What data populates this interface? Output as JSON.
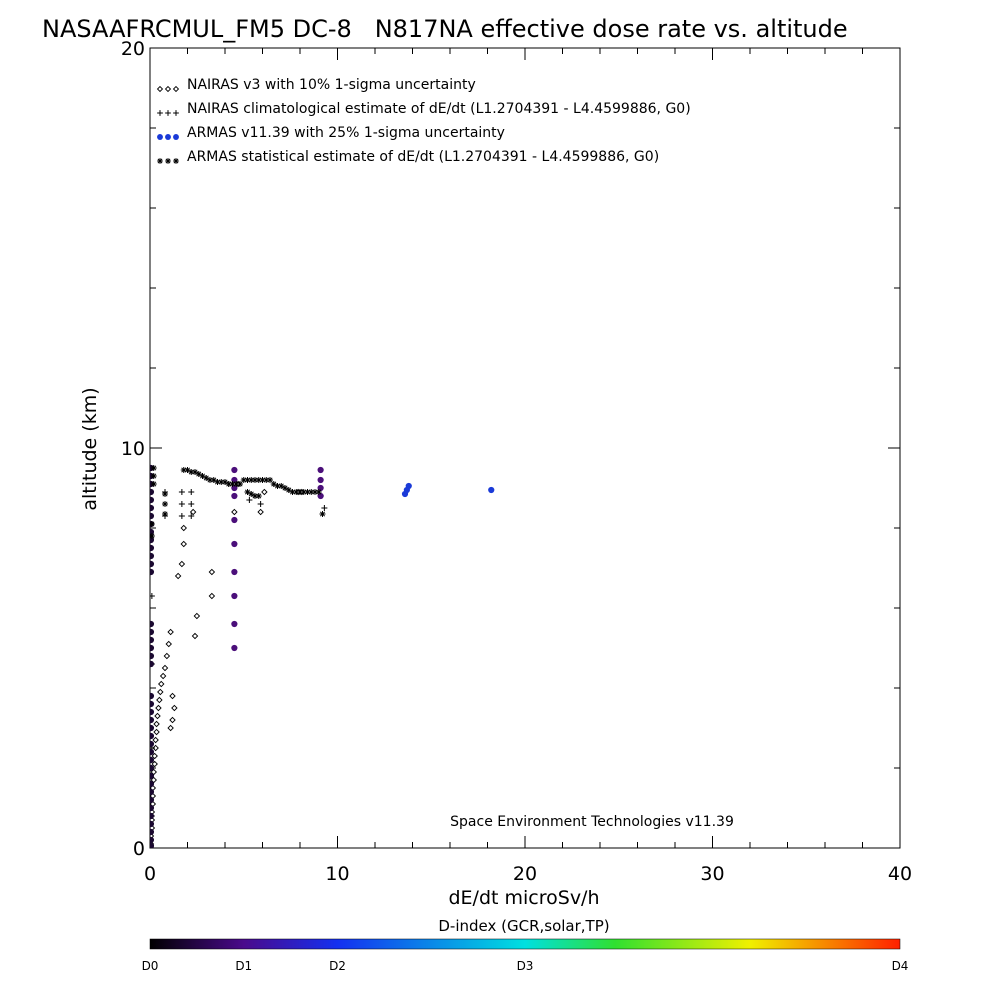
{
  "chart_data": {
    "type": "scatter",
    "title": "NASAAFRCMUL_FM5 DC-8   N817NA effective dose rate vs. altitude",
    "xlabel": "dE/dt microSv/h",
    "ylabel": "altitude (km)",
    "xlim": [
      0,
      40
    ],
    "ylim": [
      0,
      20
    ],
    "x_ticks": [
      "0",
      "10",
      "20",
      "30",
      "40"
    ],
    "y_ticks": [
      "0",
      "10",
      "20"
    ],
    "grid": false,
    "legend_position": "top-left",
    "annotation": "Space Environment Technologies v11.39",
    "series": [
      {
        "name": "NAIRAS v3 with 10% 1-sigma uncertainty",
        "marker": "diamond",
        "color": "#000000",
        "points": [
          [
            0.05,
            0.1
          ],
          [
            0.05,
            0.3
          ],
          [
            0.1,
            0.5
          ],
          [
            0.1,
            0.7
          ],
          [
            0.1,
            0.9
          ],
          [
            0.15,
            1.1
          ],
          [
            0.15,
            1.3
          ],
          [
            0.15,
            1.5
          ],
          [
            0.2,
            1.7
          ],
          [
            0.2,
            1.9
          ],
          [
            0.25,
            2.1
          ],
          [
            0.25,
            2.3
          ],
          [
            0.3,
            2.5
          ],
          [
            0.3,
            2.7
          ],
          [
            0.35,
            2.9
          ],
          [
            0.35,
            3.1
          ],
          [
            0.4,
            3.3
          ],
          [
            0.45,
            3.5
          ],
          [
            0.5,
            3.7
          ],
          [
            0.55,
            3.9
          ],
          [
            0.6,
            4.1
          ],
          [
            0.7,
            4.3
          ],
          [
            0.8,
            4.5
          ],
          [
            0.9,
            4.8
          ],
          [
            1.0,
            5.1
          ],
          [
            1.1,
            5.4
          ],
          [
            1.2,
            3.8
          ],
          [
            1.3,
            3.5
          ],
          [
            1.2,
            3.2
          ],
          [
            1.1,
            3.0
          ],
          [
            2.4,
            5.3
          ],
          [
            2.5,
            5.8
          ],
          [
            3.3,
            6.3
          ],
          [
            3.3,
            6.9
          ],
          [
            1.5,
            6.8
          ],
          [
            1.7,
            7.1
          ],
          [
            1.8,
            7.6
          ],
          [
            1.8,
            8.0
          ],
          [
            2.3,
            8.4
          ],
          [
            4.5,
            8.4
          ],
          [
            5.9,
            8.4
          ],
          [
            4.7,
            9.1
          ],
          [
            6.1,
            8.9
          ],
          [
            7.9,
            8.9
          ],
          [
            8.1,
            8.9
          ]
        ]
      },
      {
        "name": "NAIRAS climatological estimate of dE/dt (L1.2704391 - L4.4599886, G0)",
        "marker": "plus",
        "color": "#000000",
        "points": [
          [
            0.1,
            0.8
          ],
          [
            0.1,
            2.5
          ],
          [
            0.1,
            4.6
          ],
          [
            0.1,
            6.3
          ],
          [
            0.8,
            8.3
          ],
          [
            0.8,
            8.6
          ],
          [
            0.8,
            8.9
          ],
          [
            1.7,
            8.3
          ],
          [
            1.7,
            8.6
          ],
          [
            1.7,
            8.9
          ],
          [
            2.2,
            8.3
          ],
          [
            2.2,
            8.6
          ],
          [
            2.2,
            8.9
          ],
          [
            4.2,
            9.1
          ],
          [
            5.3,
            8.7
          ],
          [
            5.9,
            8.6
          ],
          [
            9.1,
            8.8
          ],
          [
            9.3,
            8.5
          ]
        ]
      },
      {
        "name": "ARMAS v11.39 with 25% 1-sigma uncertainty",
        "marker": "filled-circle",
        "color": "#1133cc",
        "points": [
          [
            0.05,
            0.05
          ],
          [
            0.05,
            0.2
          ],
          [
            0.05,
            0.4
          ],
          [
            0.05,
            0.6
          ],
          [
            0.05,
            0.8
          ],
          [
            0.05,
            1.0
          ],
          [
            0.05,
            1.2
          ],
          [
            0.05,
            1.4
          ],
          [
            0.05,
            1.6
          ],
          [
            0.05,
            1.8
          ],
          [
            0.05,
            2.0
          ],
          [
            0.05,
            2.2
          ],
          [
            0.05,
            2.4
          ],
          [
            0.05,
            2.6
          ],
          [
            0.05,
            2.8
          ],
          [
            0.05,
            3.0
          ],
          [
            0.05,
            3.2
          ],
          [
            0.05,
            3.4
          ],
          [
            0.05,
            3.6
          ],
          [
            0.05,
            3.8
          ],
          [
            0.05,
            4.6
          ],
          [
            0.05,
            4.8
          ],
          [
            0.05,
            5.0
          ],
          [
            0.05,
            5.2
          ],
          [
            0.05,
            5.4
          ],
          [
            0.05,
            5.6
          ],
          [
            0.05,
            6.9
          ],
          [
            0.05,
            7.1
          ],
          [
            0.05,
            7.3
          ],
          [
            0.05,
            7.5
          ],
          [
            0.05,
            7.7
          ],
          [
            0.05,
            7.9
          ],
          [
            0.05,
            8.1
          ],
          [
            0.05,
            8.3
          ],
          [
            0.05,
            8.5
          ],
          [
            0.05,
            8.7
          ],
          [
            0.05,
            8.9
          ],
          [
            0.05,
            9.1
          ],
          [
            0.05,
            9.3
          ],
          [
            0.05,
            9.5
          ],
          [
            4.5,
            5.0
          ],
          [
            4.5,
            5.6
          ],
          [
            4.5,
            6.3
          ],
          [
            4.5,
            6.9
          ],
          [
            4.5,
            7.6
          ],
          [
            4.5,
            8.2
          ],
          [
            4.5,
            8.8
          ],
          [
            4.5,
            9.0
          ],
          [
            4.5,
            9.2
          ],
          [
            4.5,
            9.45
          ],
          [
            9.1,
            8.8
          ],
          [
            9.1,
            9.0
          ],
          [
            9.1,
            9.2
          ],
          [
            9.1,
            9.45
          ],
          [
            13.6,
            8.85
          ],
          [
            13.7,
            8.95
          ],
          [
            13.8,
            9.05
          ],
          [
            18.2,
            8.95
          ]
        ]
      },
      {
        "name": "ARMAS statistical estimate of dE/dt (L1.2704391 - L4.4599886, G0)",
        "marker": "asterisk",
        "color": "#000000",
        "points": [
          [
            0.8,
            8.35
          ],
          [
            0.8,
            8.6
          ],
          [
            0.8,
            8.85
          ],
          [
            0.2,
            9.1
          ],
          [
            0.2,
            9.3
          ],
          [
            0.2,
            9.5
          ],
          [
            1.8,
            9.45
          ],
          [
            2.0,
            9.45
          ],
          [
            2.2,
            9.4
          ],
          [
            2.4,
            9.4
          ],
          [
            2.6,
            9.35
          ],
          [
            2.8,
            9.3
          ],
          [
            3.0,
            9.25
          ],
          [
            3.2,
            9.2
          ],
          [
            3.4,
            9.2
          ],
          [
            3.6,
            9.15
          ],
          [
            3.8,
            9.15
          ],
          [
            4.0,
            9.15
          ],
          [
            4.2,
            9.1
          ],
          [
            4.4,
            9.1
          ],
          [
            4.6,
            9.1
          ],
          [
            4.8,
            9.1
          ],
          [
            5.0,
            9.2
          ],
          [
            5.2,
            9.2
          ],
          [
            5.4,
            9.2
          ],
          [
            5.6,
            9.2
          ],
          [
            5.8,
            9.2
          ],
          [
            6.0,
            9.2
          ],
          [
            6.2,
            9.2
          ],
          [
            6.4,
            9.2
          ],
          [
            6.6,
            9.1
          ],
          [
            6.8,
            9.05
          ],
          [
            7.0,
            9.05
          ],
          [
            7.2,
            9.0
          ],
          [
            7.4,
            8.95
          ],
          [
            7.6,
            8.9
          ],
          [
            7.8,
            8.9
          ],
          [
            8.0,
            8.9
          ],
          [
            8.2,
            8.9
          ],
          [
            8.4,
            8.9
          ],
          [
            8.6,
            8.9
          ],
          [
            8.8,
            8.9
          ],
          [
            9.0,
            8.9
          ],
          [
            5.2,
            8.9
          ],
          [
            5.4,
            8.85
          ],
          [
            5.6,
            8.8
          ],
          [
            5.8,
            8.8
          ],
          [
            9.2,
            8.35
          ],
          [
            0.1,
            8.1
          ],
          [
            0.1,
            7.8
          ]
        ]
      }
    ],
    "colorbar": {
      "title": "D-index (GCR,solar,TP)",
      "labels": [
        "D0",
        "D1",
        "D2",
        "D3",
        "D4"
      ],
      "label_positions": [
        0,
        0.125,
        0.25,
        0.5,
        1.0
      ],
      "colors": [
        "#000000",
        "#4a0a8c",
        "#1430f0",
        "#00e0e0",
        "#30e030",
        "#f0f000",
        "#ff2000"
      ]
    }
  }
}
